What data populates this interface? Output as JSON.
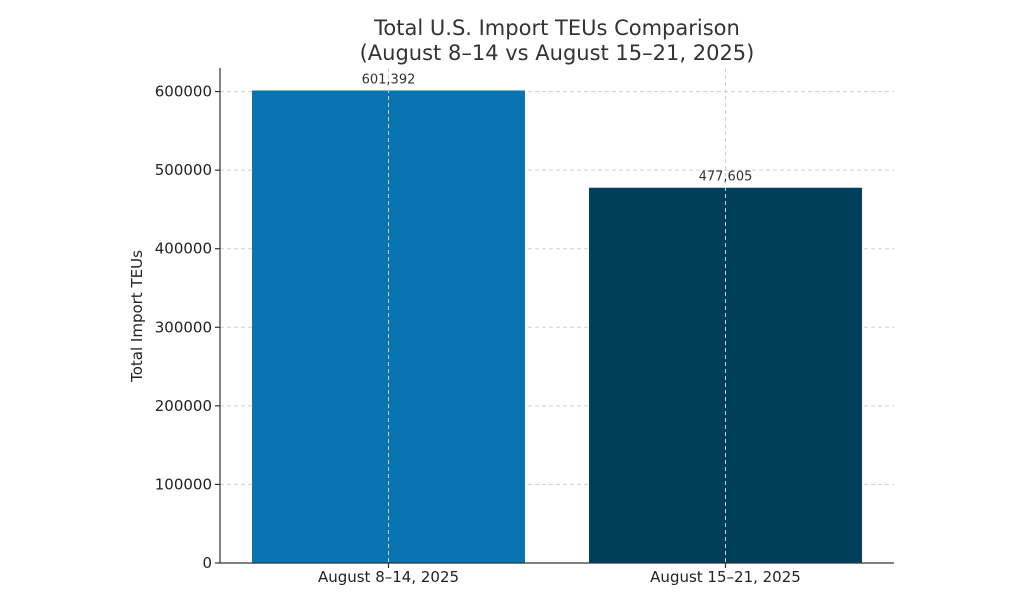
{
  "chart_data": {
    "type": "bar",
    "title": [
      "Total U.S. Import TEUs Comparison",
      "(August 8–14 vs August 15–21, 2025)"
    ],
    "categories": [
      "August 8–14, 2025",
      "August 15–21, 2025"
    ],
    "values": [
      601392,
      477605
    ],
    "data_labels": [
      "601,392",
      "477,605"
    ],
    "colors": [
      "#0a74b0",
      "#003f5c"
    ],
    "xlabel": "",
    "ylabel": "Total Import TEUs",
    "ylim": [
      0,
      630000
    ],
    "yticks": [
      0,
      100000,
      200000,
      300000,
      400000,
      500000,
      600000
    ],
    "ytick_labels": [
      "0",
      "100000",
      "200000",
      "300000",
      "400000",
      "500000",
      "600000"
    ],
    "grid": true,
    "legend": "none"
  }
}
